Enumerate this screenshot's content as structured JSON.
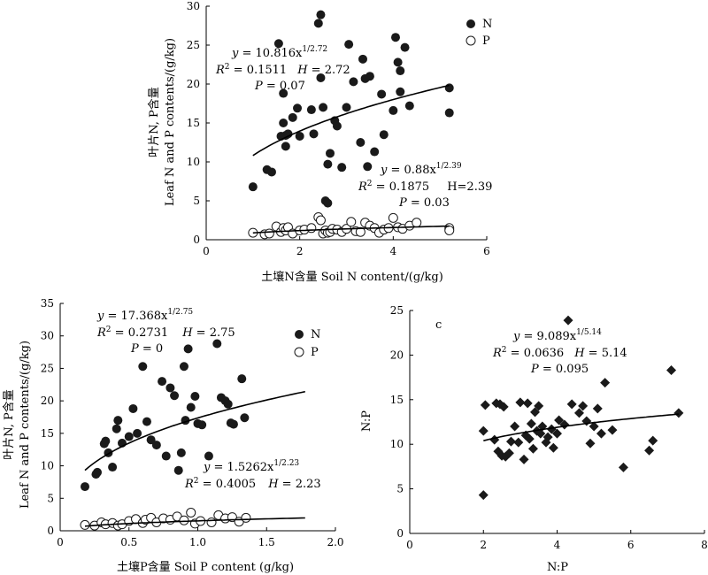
{
  "chart_data": [
    {
      "type": "scatter",
      "xlabel": "土壤N含量 Soil N content/(g/kg)",
      "ylabel_cn": "叶片N, P含量",
      "ylabel_en": "Leaf N and P contents/(g/kg)",
      "xlim": [
        0,
        6
      ],
      "ylim": [
        0,
        30
      ],
      "xticks": [
        0,
        2,
        4,
        6
      ],
      "yticks": [
        0,
        5,
        10,
        15,
        20,
        25,
        30
      ],
      "legend": [
        {
          "label": "N",
          "marker": "filled-circle"
        },
        {
          "label": "P",
          "marker": "open-circle"
        }
      ],
      "legend_position": "top-right",
      "annotations": {
        "N": {
          "eq_prefix": "y",
          "eq_mid": " = 10.816x",
          "eq_exp": "1/2.72",
          "r2": " = 0.1511",
          "h_label": "H",
          "h_val": " = 2.72",
          "p_label": "P",
          "p_val": " = 0.07"
        },
        "P": {
          "eq_prefix": "y",
          "eq_mid": " = 0.88x",
          "eq_exp": "1/2.39",
          "r2": " = 0.1875",
          "h_full": "H=2.39",
          "p_label": "P",
          "p_val": " = 0.03"
        }
      },
      "series": [
        {
          "name": "N",
          "fit": {
            "a": 10.816,
            "k": 2.72
          },
          "x": [
            1.0,
            1.3,
            1.4,
            1.55,
            1.6,
            1.65,
            1.65,
            1.7,
            1.7,
            1.75,
            1.85,
            1.95,
            2.0,
            2.25,
            2.3,
            2.4,
            2.45,
            2.45,
            2.5,
            2.55,
            2.6,
            2.6,
            2.65,
            2.75,
            2.8,
            2.9,
            3.0,
            3.05,
            3.15,
            3.3,
            3.35,
            3.4,
            3.45,
            3.5,
            3.6,
            3.75,
            3.8,
            4.0,
            4.05,
            4.1,
            4.15,
            4.15,
            4.25,
            4.35,
            5.2,
            5.2
          ],
          "y": [
            6.8,
            9.0,
            8.7,
            25.2,
            13.3,
            15.0,
            18.8,
            13.4,
            12.0,
            13.6,
            15.7,
            16.9,
            13.3,
            16.7,
            13.6,
            27.8,
            28.9,
            20.8,
            17.0,
            5.0,
            4.7,
            9.7,
            11.1,
            15.3,
            14.6,
            9.3,
            17.0,
            25.1,
            20.3,
            12.5,
            23.2,
            20.7,
            9.4,
            21.0,
            11.3,
            18.7,
            13.5,
            16.6,
            26.0,
            22.8,
            19.0,
            21.7,
            24.7,
            17.2,
            19.5,
            16.3
          ]
        },
        {
          "name": "P",
          "fit": {
            "a": 0.88,
            "k": 2.39
          },
          "x": [
            1.0,
            1.25,
            1.35,
            1.5,
            1.6,
            1.65,
            1.7,
            1.75,
            1.85,
            2.0,
            2.1,
            2.25,
            2.4,
            2.45,
            2.5,
            2.55,
            2.6,
            2.65,
            2.7,
            2.8,
            2.9,
            3.0,
            3.1,
            3.2,
            3.3,
            3.4,
            3.5,
            3.6,
            3.7,
            3.8,
            3.9,
            4.0,
            4.1,
            4.2,
            4.35,
            4.5,
            5.2,
            5.2
          ],
          "y": [
            0.9,
            0.7,
            0.8,
            1.7,
            1.0,
            1.5,
            1.2,
            1.6,
            0.8,
            1.2,
            1.3,
            1.5,
            2.9,
            2.5,
            0.8,
            1.2,
            0.9,
            1.0,
            1.4,
            1.3,
            1.0,
            1.4,
            2.3,
            1.1,
            1.0,
            2.2,
            1.8,
            1.5,
            0.9,
            1.3,
            1.5,
            2.8,
            1.6,
            1.4,
            1.8,
            2.2,
            1.5,
            1.2
          ]
        }
      ]
    },
    {
      "type": "scatter",
      "xlabel": "土壤P含量 Soil P content (g/kg)",
      "ylabel_cn": "叶片N, P含量",
      "ylabel_en": "Leaf N and P contents/(g/kg)",
      "xlim": [
        0,
        2.0
      ],
      "ylim": [
        0,
        35
      ],
      "xticks": [
        "0",
        "0.5",
        "1.0",
        "1.5",
        "2.0"
      ],
      "yticks": [
        0,
        5,
        10,
        15,
        20,
        25,
        30,
        35
      ],
      "legend": [
        {
          "label": "N",
          "marker": "filled-circle"
        },
        {
          "label": "P",
          "marker": "open-circle"
        }
      ],
      "legend_position": "top-right",
      "annotations": {
        "N": {
          "eq_prefix": "y",
          "eq_mid": " = 17.368x",
          "eq_exp": "1/2.75",
          "r2": " = 0.2731",
          "h_label": "H",
          "h_val": " = 2.75",
          "p_label": "P",
          "p_val": " = 0"
        },
        "P": {
          "eq_prefix": "y",
          "eq_mid": " = 1.5262x",
          "eq_exp": "1/2.23",
          "r2": " = 0.4005",
          "h_label": "H",
          "h_val": " = 2.23"
        }
      },
      "series": [
        {
          "name": "N",
          "fit": {
            "a": 17.368,
            "k": 2.75
          },
          "x": [
            0.18,
            0.26,
            0.27,
            0.32,
            0.33,
            0.35,
            0.38,
            0.41,
            0.42,
            0.45,
            0.5,
            0.53,
            0.56,
            0.6,
            0.63,
            0.66,
            0.7,
            0.74,
            0.77,
            0.8,
            0.83,
            0.86,
            0.88,
            0.9,
            0.91,
            0.93,
            0.95,
            0.98,
            1.0,
            1.03,
            1.08,
            1.14,
            1.17,
            1.2,
            1.22,
            1.24,
            1.26,
            1.32,
            1.34
          ],
          "y": [
            6.8,
            8.7,
            9.0,
            13.4,
            13.8,
            12.0,
            9.8,
            15.7,
            17.0,
            13.5,
            14.5,
            18.8,
            15.0,
            25.3,
            16.8,
            14.0,
            13.2,
            23.0,
            11.5,
            22.0,
            20.8,
            9.3,
            12.0,
            25.3,
            17.0,
            28.0,
            19.0,
            20.7,
            16.5,
            16.3,
            11.5,
            28.8,
            20.5,
            20.0,
            19.5,
            16.6,
            16.4,
            23.4,
            17.4
          ]
        },
        {
          "name": "P",
          "fit": {
            "a": 1.5262,
            "k": 2.23
          },
          "x": [
            0.18,
            0.25,
            0.3,
            0.33,
            0.38,
            0.42,
            0.45,
            0.5,
            0.55,
            0.6,
            0.62,
            0.66,
            0.7,
            0.75,
            0.8,
            0.85,
            0.9,
            0.95,
            0.98,
            1.02,
            1.1,
            1.15,
            1.2,
            1.25,
            1.3,
            1.35
          ],
          "y": [
            0.9,
            0.8,
            1.3,
            1.0,
            1.2,
            0.8,
            1.0,
            1.5,
            1.8,
            1.2,
            1.7,
            2.0,
            1.3,
            1.9,
            1.7,
            2.2,
            1.6,
            2.8,
            1.1,
            1.5,
            1.3,
            2.4,
            1.9,
            2.1,
            1.4,
            2.0
          ]
        }
      ]
    },
    {
      "type": "scatter",
      "panel_label": "c",
      "xlabel": "N:P",
      "ylabel": "N:P",
      "xlim": [
        0,
        8
      ],
      "ylim": [
        0,
        25
      ],
      "xticks": [
        0,
        2,
        4,
        6,
        8
      ],
      "yticks": [
        0,
        5,
        10,
        15,
        20,
        25
      ],
      "annotations": {
        "eq_prefix": "y",
        "eq_mid": " = 9.089x",
        "eq_exp": "1/5.14",
        "r2": " = 0.0636",
        "h_label": "H",
        "h_val": " = 5.14",
        "p_label": "P",
        "p_val": " = 0.095"
      },
      "series": [
        {
          "name": "N:P",
          "fit": {
            "a": 9.089,
            "k": 5.14
          },
          "x": [
            2.0,
            2.0,
            2.05,
            2.3,
            2.35,
            2.4,
            2.45,
            2.5,
            2.55,
            2.6,
            2.7,
            2.75,
            2.85,
            2.95,
            3.0,
            3.1,
            3.15,
            3.2,
            3.25,
            3.3,
            3.35,
            3.4,
            3.45,
            3.5,
            3.55,
            3.6,
            3.7,
            3.75,
            3.85,
            3.9,
            4.0,
            4.05,
            4.2,
            4.3,
            4.4,
            4.6,
            4.7,
            4.8,
            4.9,
            5.0,
            5.1,
            5.2,
            5.3,
            5.5,
            5.8,
            6.5,
            6.6,
            7.1,
            7.3
          ],
          "y": [
            4.3,
            11.5,
            14.4,
            10.5,
            14.6,
            9.2,
            14.5,
            8.7,
            14.2,
            8.6,
            9.0,
            10.3,
            12.0,
            10.2,
            14.7,
            8.3,
            11.0,
            14.6,
            10.6,
            12.3,
            9.5,
            13.6,
            11.5,
            14.3,
            11.2,
            12.0,
            10.2,
            10.8,
            11.7,
            9.6,
            11.2,
            12.7,
            12.2,
            23.9,
            14.5,
            13.5,
            14.3,
            12.6,
            10.1,
            12.0,
            14.0,
            11.2,
            16.9,
            11.6,
            7.4,
            9.3,
            10.4,
            18.3,
            13.5
          ]
        }
      ]
    }
  ]
}
